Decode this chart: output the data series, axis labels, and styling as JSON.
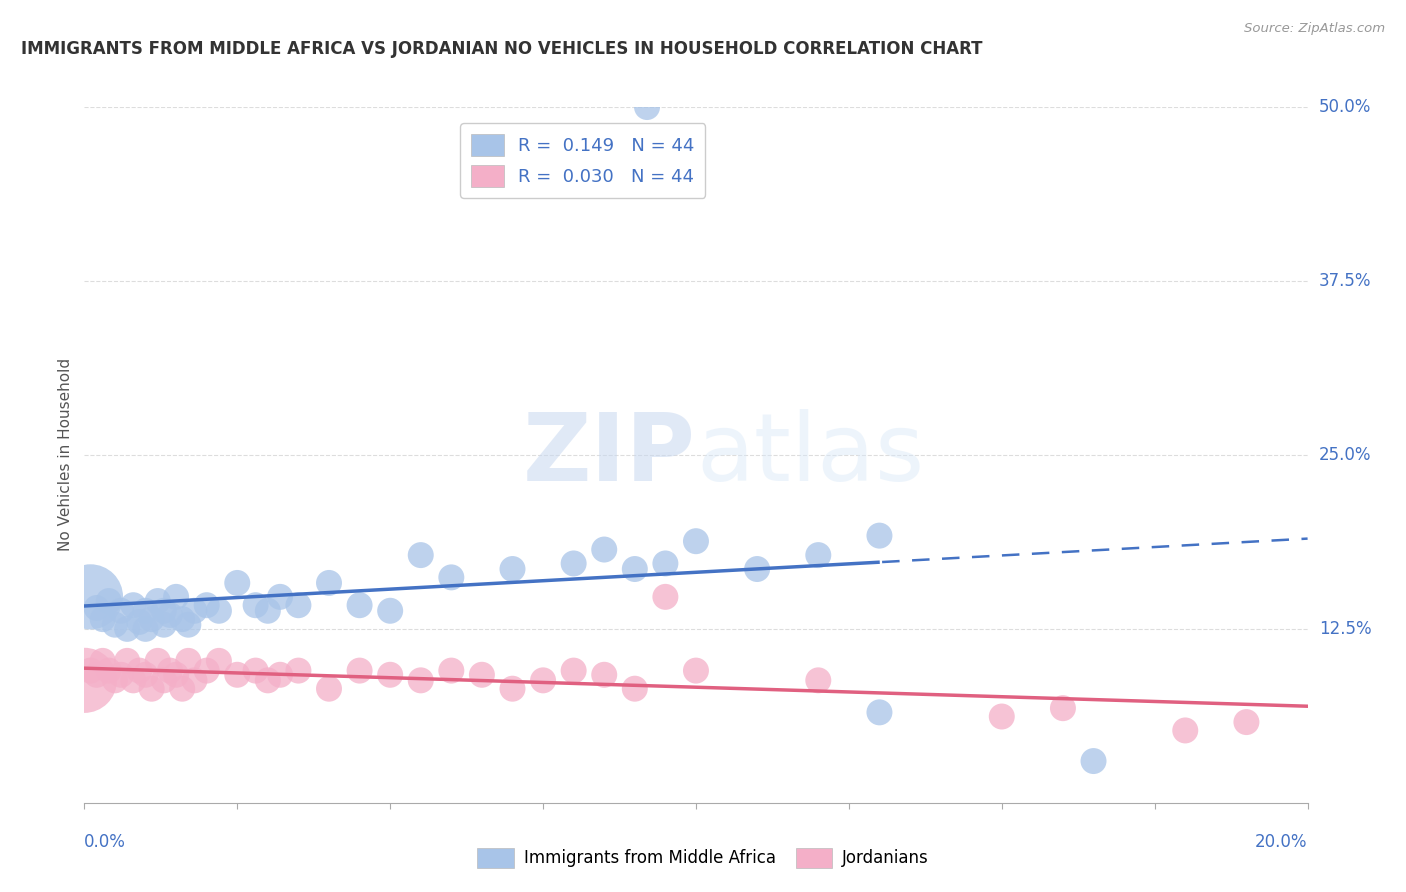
{
  "title": "IMMIGRANTS FROM MIDDLE AFRICA VS JORDANIAN NO VEHICLES IN HOUSEHOLD CORRELATION CHART",
  "source": "Source: ZipAtlas.com",
  "ylabel": "No Vehicles in Household",
  "r_blue": 0.149,
  "r_pink": 0.03,
  "n": 44,
  "blue_color": "#a8c4e8",
  "pink_color": "#f4afc8",
  "blue_line_color": "#4472c4",
  "pink_line_color": "#e06080",
  "background_color": "#ffffff",
  "watermark_zip": "ZIP",
  "watermark_atlas": "atlas",
  "xlim": [
    0.0,
    0.2
  ],
  "ylim": [
    0.0,
    0.5
  ],
  "yticks": [
    0.0,
    0.125,
    0.25,
    0.375,
    0.5
  ],
  "ytick_labels": [
    "",
    "12.5%",
    "25.0%",
    "37.5%",
    "50.0%"
  ],
  "blue_x": [
    0.001,
    0.002,
    0.003,
    0.004,
    0.005,
    0.006,
    0.007,
    0.008,
    0.009,
    0.01,
    0.01,
    0.011,
    0.012,
    0.013,
    0.013,
    0.014,
    0.015,
    0.016,
    0.017,
    0.018,
    0.02,
    0.022,
    0.025,
    0.028,
    0.03,
    0.032,
    0.035,
    0.04,
    0.045,
    0.05,
    0.055,
    0.06,
    0.07,
    0.08,
    0.09,
    0.095,
    0.1,
    0.11,
    0.12,
    0.13,
    0.085,
    0.092,
    0.13,
    0.165
  ],
  "blue_y": [
    0.148,
    0.14,
    0.132,
    0.145,
    0.128,
    0.138,
    0.125,
    0.142,
    0.13,
    0.125,
    0.138,
    0.132,
    0.145,
    0.138,
    0.128,
    0.135,
    0.148,
    0.132,
    0.128,
    0.138,
    0.142,
    0.138,
    0.158,
    0.142,
    0.138,
    0.148,
    0.142,
    0.158,
    0.142,
    0.138,
    0.178,
    0.162,
    0.168,
    0.172,
    0.168,
    0.172,
    0.188,
    0.168,
    0.178,
    0.192,
    0.182,
    0.5,
    0.065,
    0.03
  ],
  "pink_x": [
    0.0,
    0.001,
    0.002,
    0.003,
    0.004,
    0.005,
    0.006,
    0.007,
    0.008,
    0.009,
    0.01,
    0.011,
    0.012,
    0.013,
    0.014,
    0.015,
    0.016,
    0.017,
    0.018,
    0.02,
    0.022,
    0.025,
    0.028,
    0.03,
    0.032,
    0.035,
    0.04,
    0.045,
    0.05,
    0.055,
    0.06,
    0.065,
    0.07,
    0.075,
    0.08,
    0.085,
    0.09,
    0.095,
    0.1,
    0.12,
    0.15,
    0.16,
    0.18,
    0.19
  ],
  "pink_y": [
    0.088,
    0.095,
    0.092,
    0.102,
    0.095,
    0.088,
    0.092,
    0.102,
    0.088,
    0.095,
    0.092,
    0.082,
    0.102,
    0.088,
    0.095,
    0.092,
    0.082,
    0.102,
    0.088,
    0.095,
    0.102,
    0.092,
    0.095,
    0.088,
    0.092,
    0.095,
    0.082,
    0.095,
    0.092,
    0.088,
    0.095,
    0.092,
    0.082,
    0.088,
    0.095,
    0.092,
    0.082,
    0.148,
    0.095,
    0.088,
    0.062,
    0.068,
    0.052,
    0.058
  ],
  "blue_sizes_default": 350,
  "blue_size_large": 2200,
  "pink_sizes_default": 350,
  "pink_size_large": 2200,
  "trend_solid_end_blue": 0.13,
  "legend_r_color": "#4472c4",
  "legend_n_color": "#333333",
  "grid_color": "#dddddd",
  "tick_color": "#aaaaaa",
  "yticklabel_color": "#4472c4",
  "xticklabel_color": "#4472c4",
  "title_color": "#333333",
  "source_color": "#999999",
  "ylabel_color": "#555555"
}
